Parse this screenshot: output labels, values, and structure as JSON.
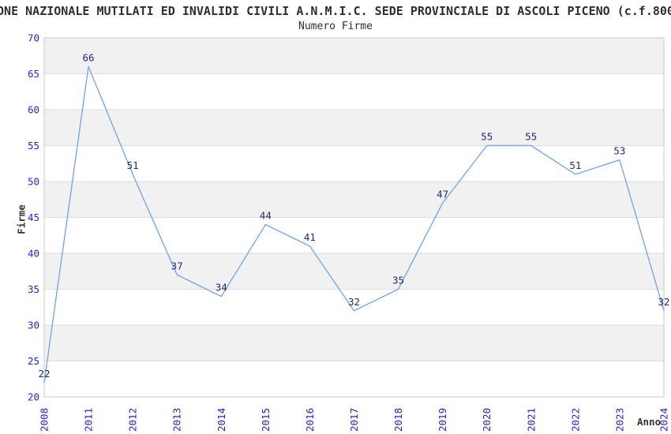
{
  "chart_data": {
    "type": "line",
    "title": "ONE NAZIONALE MUTILATI ED INVALIDI CIVILI A.N.M.I.C. SEDE PROVINCIALE DI ASCOLI PICENO (c.f.800",
    "subtitle": "Numero Firme",
    "xlabel": "Anno",
    "ylabel": "Firme",
    "categories": [
      "2008",
      "2011",
      "2012",
      "2013",
      "2014",
      "2015",
      "2016",
      "2017",
      "2018",
      "2019",
      "2020",
      "2021",
      "2022",
      "2023",
      "2024"
    ],
    "values": [
      22,
      66,
      51,
      37,
      34,
      44,
      41,
      32,
      35,
      47,
      55,
      55,
      51,
      53,
      32
    ],
    "point_labels": [
      "22",
      "66",
      "51",
      "37",
      "34",
      "44",
      "41",
      "32",
      "35",
      "47",
      "55",
      "55",
      "51",
      "53",
      "32"
    ],
    "ylim": [
      20,
      70
    ],
    "ytick_step": 5,
    "yticks": [
      "20",
      "25",
      "30",
      "35",
      "40",
      "45",
      "50",
      "55",
      "60",
      "65",
      "70"
    ],
    "legend_position": "none",
    "grid": "horizontal-gridlines-with-alternating-bands",
    "x_tick_rotation_degrees": -90,
    "colors": {
      "line": "#7AA7E8",
      "point_label": "#26267A",
      "tick_label": "#2424D0",
      "title_text": "#2F2F2F",
      "band_gray": "#F1F1F1",
      "band_white": "#FFFFFF",
      "gridline": "#DCDCDC",
      "plot_border": "#C8C8C8",
      "background": "#FFFFFF"
    }
  }
}
